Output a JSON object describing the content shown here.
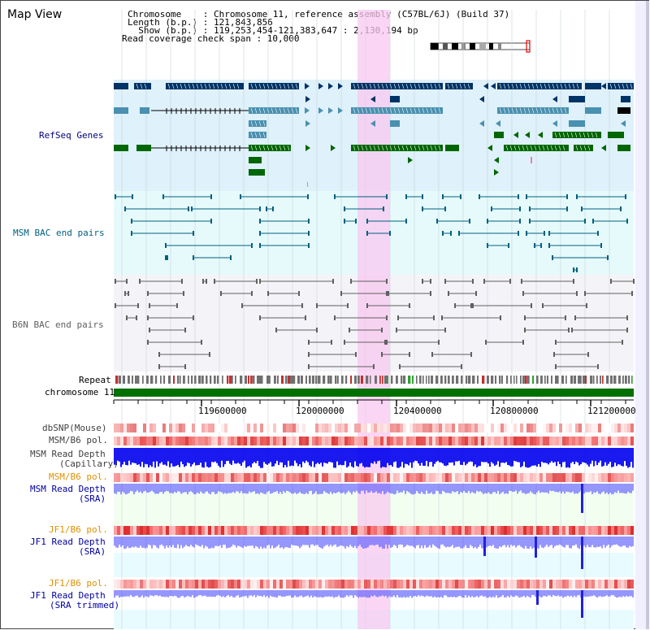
{
  "page": {
    "title": "Map View",
    "info_lines": [
      "Chromosome    : Chromosome 11, reference assembly (C57BL/6J) (Build 37)",
      "Length (b.p.) : 121,843,856",
      "  Show (b.p.) : 119,253,454-121,383,647 : 2,130,194 bp",
      "Read coverage check span : 10,000"
    ]
  },
  "tracks": {
    "refseq": "RefSeq Genes",
    "msm_bac": "MSM BAC end pairs",
    "b6n_bac": "B6N BAC end pairs",
    "repeat": "Repeat",
    "chromosome": "chromosome 11",
    "dbsnp": "dbSNP(Mouse)",
    "msm_b6_pol_1": "MSM/B6 pol.",
    "msm_read_depth_cap": [
      "MSM Read Depth",
      "(Capillary)"
    ],
    "msm_b6_pol_2": "MSM/B6 pol.",
    "msm_read_depth_sra": [
      "MSM Read Depth",
      "(SRA)"
    ],
    "jf1_b6_pol_1": "JF1/B6 pol.",
    "jf1_read_depth_sra": [
      "JF1 Read Depth",
      "(SRA)"
    ],
    "jf1_b6_pol_2": "JF1/B6 pol.",
    "jf1_read_depth_trim": [
      "JF1 Read Depth",
      "(SRA trimmed)"
    ]
  },
  "ruler": {
    "ticks": [
      "119600000",
      "120000000",
      "120400000",
      "120800000",
      "121200000"
    ]
  },
  "colors": {
    "refseq_dark": "#003366",
    "refseq_mid": "#4a90b0",
    "refseq_green": "#006600",
    "highlight": "#f8c8f0",
    "msm_color": "#006080",
    "b6n_color": "#606060",
    "depth_blue": "#0000ff",
    "pol_red": "#ff3030",
    "pol_orange_label": "#e09000"
  }
}
